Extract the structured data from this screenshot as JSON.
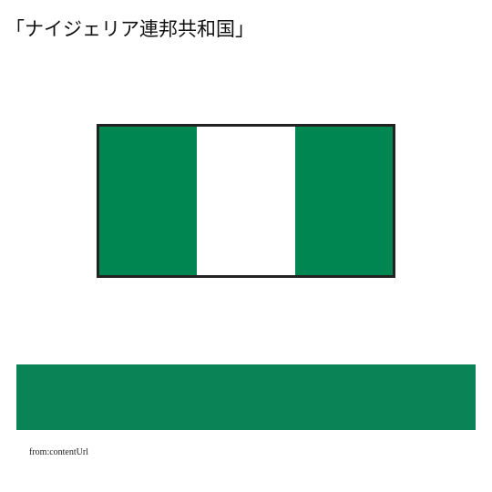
{
  "title": "「ナイジェリア連邦共和国」",
  "flag": {
    "name": "nigeria-flag",
    "stripes": [
      "#008751",
      "#ffffff",
      "#008751"
    ],
    "border_color": "#222222"
  },
  "banner": {
    "color": "#0a8456"
  },
  "source_label": "from:contentUrl"
}
